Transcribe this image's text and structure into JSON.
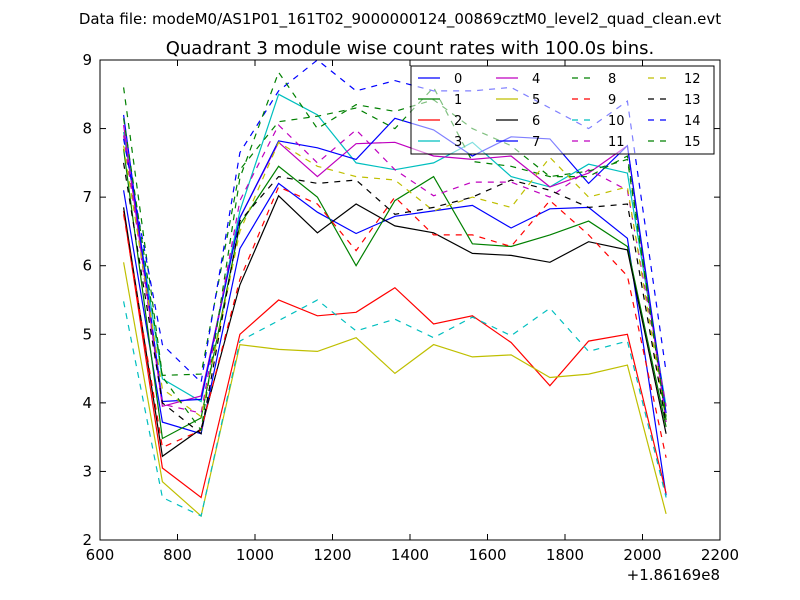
{
  "suptitle": "Data file: modeM0/AS1P01_161T02_9000000124_00869cztM0_level2_quad_clean.evt",
  "chart_data": {
    "type": "line",
    "title": "Quadrant 3 module wise count rates with 100.0s bins.",
    "xlabel": "",
    "ylabel": "",
    "x_offset_label": "+1.86169e8",
    "xlim": [
      600,
      2200
    ],
    "ylim": [
      2,
      9
    ],
    "xticks": [
      600,
      800,
      1000,
      1200,
      1400,
      1600,
      1800,
      2000,
      2200
    ],
    "yticks": [
      2,
      3,
      4,
      5,
      6,
      7,
      8,
      9
    ],
    "grid": false,
    "legend_position": "top-right",
    "x": [
      661,
      761,
      861,
      961,
      1061,
      1161,
      1261,
      1361,
      1461,
      1561,
      1661,
      1761,
      1861,
      1961,
      2061
    ],
    "series": [
      {
        "name": "0",
        "color": "#0000ff",
        "style": "solid",
        "values": [
          7.1,
          3.72,
          3.55,
          6.25,
          7.2,
          6.78,
          6.47,
          6.72,
          6.8,
          6.88,
          6.55,
          6.83,
          6.85,
          6.4,
          2.65
        ]
      },
      {
        "name": "1",
        "color": "#008000",
        "style": "solid",
        "values": [
          7.7,
          3.48,
          3.78,
          6.6,
          7.45,
          7.0,
          6.0,
          6.95,
          7.3,
          6.32,
          6.28,
          6.45,
          6.65,
          6.28,
          3.65
        ]
      },
      {
        "name": "2",
        "color": "#ff0000",
        "style": "solid",
        "values": [
          6.8,
          3.05,
          2.62,
          5.0,
          5.5,
          5.27,
          5.32,
          5.68,
          5.15,
          5.27,
          4.88,
          4.25,
          4.9,
          5.0,
          2.68
        ]
      },
      {
        "name": "3",
        "color": "#00bfbf",
        "style": "solid",
        "values": [
          7.95,
          4.35,
          4.02,
          6.8,
          8.5,
          8.2,
          7.5,
          7.4,
          7.5,
          7.8,
          7.3,
          7.15,
          7.48,
          7.35,
          3.95
        ]
      },
      {
        "name": "4",
        "color": "#bf00bf",
        "style": "solid",
        "values": [
          8.05,
          3.95,
          4.1,
          6.7,
          7.8,
          7.3,
          7.78,
          7.8,
          7.6,
          7.55,
          7.6,
          7.15,
          7.35,
          7.75,
          3.72
        ]
      },
      {
        "name": "5",
        "color": "#bfbf00",
        "style": "solid",
        "values": [
          6.05,
          2.85,
          2.35,
          4.85,
          4.78,
          4.75,
          4.95,
          4.43,
          4.85,
          4.67,
          4.7,
          4.37,
          4.42,
          4.55,
          2.38
        ]
      },
      {
        "name": "6",
        "color": "#000000",
        "style": "solid",
        "values": [
          6.85,
          3.22,
          3.62,
          5.72,
          7.02,
          6.48,
          6.9,
          6.58,
          6.48,
          6.18,
          6.15,
          6.05,
          6.35,
          6.23,
          3.55
        ]
      },
      {
        "name": "7",
        "color": "#0000ff",
        "style": "solid",
        "values": [
          8.2,
          4.02,
          4.05,
          6.7,
          7.82,
          7.72,
          7.55,
          8.15,
          7.98,
          7.6,
          7.88,
          7.85,
          7.2,
          7.75,
          3.85
        ]
      },
      {
        "name": "8",
        "color": "#008000",
        "style": "dashed",
        "values": [
          8.6,
          4.4,
          4.42,
          7.4,
          8.1,
          8.18,
          8.3,
          8.0,
          8.6,
          7.52,
          7.45,
          7.3,
          7.3,
          7.6,
          3.8
        ]
      },
      {
        "name": "9",
        "color": "#ff0000",
        "style": "dashed",
        "values": [
          6.75,
          3.35,
          3.6,
          5.8,
          7.15,
          6.9,
          6.22,
          7.0,
          6.45,
          6.45,
          6.28,
          6.95,
          6.45,
          5.85,
          3.2
        ]
      },
      {
        "name": "10",
        "color": "#00bfbf",
        "style": "dashed",
        "values": [
          5.48,
          2.62,
          2.35,
          4.9,
          5.2,
          5.5,
          5.05,
          5.22,
          4.95,
          5.25,
          4.98,
          5.38,
          4.75,
          4.9,
          2.62
        ]
      },
      {
        "name": "11",
        "color": "#bf00bf",
        "style": "dashed",
        "values": [
          7.9,
          3.98,
          3.85,
          6.95,
          8.05,
          7.5,
          7.98,
          7.4,
          7.02,
          7.22,
          7.22,
          7.0,
          7.4,
          7.1,
          3.95
        ]
      },
      {
        "name": "12",
        "color": "#bfbf00",
        "style": "dashed",
        "values": [
          7.75,
          4.2,
          3.8,
          6.5,
          7.8,
          7.45,
          7.3,
          7.25,
          6.8,
          7.0,
          6.85,
          7.58,
          7.0,
          7.15,
          3.72
        ]
      },
      {
        "name": "13",
        "color": "#000000",
        "style": "dashed",
        "values": [
          7.5,
          4.0,
          3.55,
          6.65,
          7.3,
          7.2,
          7.25,
          6.75,
          6.85,
          7.0,
          7.25,
          7.1,
          6.85,
          6.9,
          3.7
        ]
      },
      {
        "name": "14",
        "color": "#0000ff",
        "style": "dashed",
        "values": [
          7.85,
          4.85,
          4.3,
          7.65,
          8.55,
          9.0,
          8.55,
          8.7,
          8.55,
          8.55,
          8.6,
          8.3,
          8.0,
          8.4,
          4.45
        ]
      },
      {
        "name": "15",
        "color": "#008000",
        "style": "dashed",
        "values": [
          8.15,
          4.38,
          3.6,
          7.28,
          8.82,
          8.0,
          8.35,
          8.25,
          8.42,
          8.0,
          7.75,
          7.3,
          7.38,
          7.55,
          3.75
        ]
      }
    ]
  }
}
